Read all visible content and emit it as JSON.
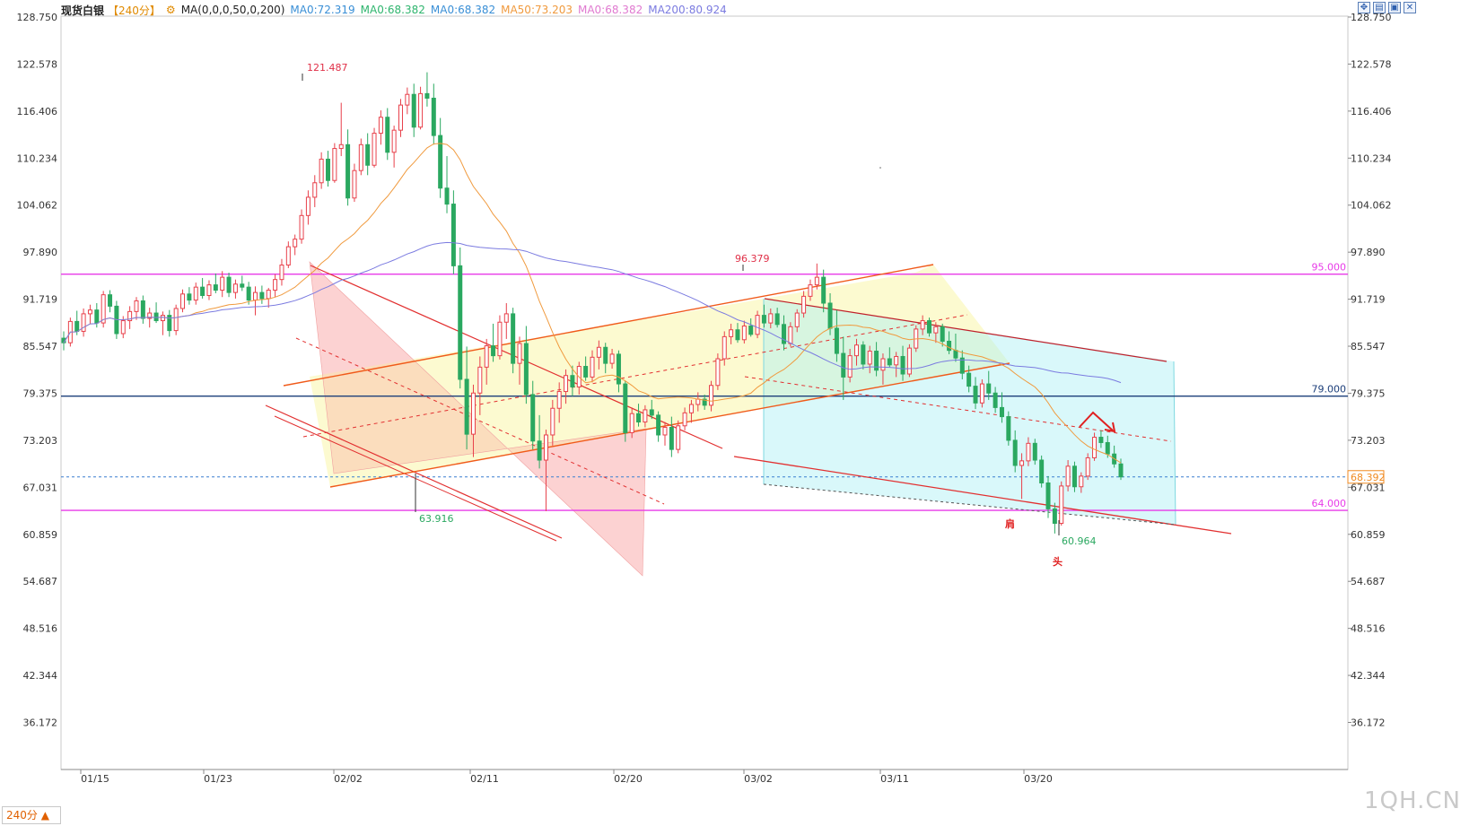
{
  "header": {
    "instrument": "现货白银",
    "period": "【240分】",
    "settings_icon": "gear-icon",
    "ma_params": "MA(0,0,0,50,0,200)",
    "ma_items": [
      {
        "label": "MA0:72.319",
        "color": "#3a8fd6"
      },
      {
        "label": "MA0:68.382",
        "color": "#2fb56e"
      },
      {
        "label": "MA0:68.382",
        "color": "#3a8fd6"
      },
      {
        "label": "MA50:73.203",
        "color": "#f09a3e"
      },
      {
        "label": "MA0:68.382",
        "color": "#e07ad0"
      },
      {
        "label": "MA200:80.924",
        "color": "#7b7be0"
      }
    ]
  },
  "window_controls": [
    "expand-icon",
    "minimize-icon",
    "restore-icon",
    "close-icon"
  ],
  "period_selector": "240分 ▲",
  "watermark": "1QH.CN",
  "chart_data": {
    "type": "candlestick",
    "y_ticks": [
      "128.750",
      "122.578",
      "116.406",
      "110.234",
      "104.062",
      "97.890",
      "91.719",
      "85.547",
      "79.375",
      "73.203",
      "67.031",
      "60.859",
      "54.687",
      "48.516",
      "42.344",
      "36.172"
    ],
    "x_ticks": [
      "01/15",
      "01/23",
      "02/02",
      "02/11",
      "02/20",
      "03/02",
      "03/11",
      "03/20"
    ],
    "ylim": [
      36.172,
      128.75
    ],
    "horizontal_levels": [
      {
        "value": 95.0,
        "label": "95.000",
        "color": "#e83be8"
      },
      {
        "value": 79.0,
        "label": "79.000",
        "color": "#1d3f7a"
      },
      {
        "value": 64.0,
        "label": "64.000",
        "color": "#e83be8"
      }
    ],
    "last_price": {
      "value": 68.392,
      "label": "68.392",
      "color": "#f08a20"
    },
    "annotations": [
      {
        "text": "121.487",
        "color": "#e03048"
      },
      {
        "text": "63.916",
        "color": "#2aa860"
      },
      {
        "text": "96.379",
        "color": "#e03048"
      },
      {
        "text": "60.964",
        "color": "#2aa860"
      },
      {
        "text": "肩",
        "color": "#e02020"
      },
      {
        "text": "头",
        "color": "#e02020"
      }
    ],
    "candles": [
      [
        86.6,
        87.5,
        85.0,
        86.0
      ],
      [
        86.0,
        89.3,
        85.5,
        88.8
      ],
      [
        88.8,
        90.2,
        87.0,
        87.5
      ],
      [
        87.5,
        90.5,
        86.8,
        89.8
      ],
      [
        89.8,
        91.0,
        88.5,
        90.3
      ],
      [
        90.3,
        91.2,
        88.0,
        88.6
      ],
      [
        88.6,
        92.8,
        88.0,
        92.3
      ],
      [
        92.3,
        92.9,
        90.0,
        90.8
      ],
      [
        90.8,
        91.5,
        86.5,
        87.2
      ],
      [
        87.2,
        89.5,
        86.6,
        88.9
      ],
      [
        88.9,
        90.8,
        87.8,
        90.1
      ],
      [
        90.1,
        92.0,
        89.0,
        91.5
      ],
      [
        91.5,
        92.2,
        88.5,
        89.2
      ],
      [
        89.2,
        90.6,
        88.0,
        89.9
      ],
      [
        89.9,
        91.3,
        88.6,
        88.9
      ],
      [
        88.9,
        90.1,
        87.0,
        89.6
      ],
      [
        89.6,
        90.3,
        86.8,
        87.6
      ],
      [
        87.6,
        91.0,
        87.0,
        90.5
      ],
      [
        90.5,
        93.0,
        90.0,
        92.4
      ],
      [
        92.4,
        93.3,
        91.0,
        91.6
      ],
      [
        91.6,
        93.9,
        91.0,
        93.3
      ],
      [
        93.3,
        94.5,
        91.8,
        92.2
      ],
      [
        92.2,
        94.2,
        91.6,
        93.6
      ],
      [
        93.6,
        95.1,
        92.5,
        92.9
      ],
      [
        92.9,
        95.4,
        92.0,
        94.6
      ],
      [
        94.6,
        95.2,
        92.0,
        92.6
      ],
      [
        92.6,
        94.3,
        91.8,
        93.7
      ],
      [
        93.7,
        94.8,
        92.8,
        93.3
      ],
      [
        93.3,
        94.0,
        91.0,
        91.6
      ],
      [
        91.6,
        93.4,
        89.6,
        92.6
      ],
      [
        92.6,
        93.5,
        91.1,
        91.8
      ],
      [
        91.8,
        93.2,
        90.6,
        92.9
      ],
      [
        92.9,
        95.0,
        92.0,
        94.3
      ],
      [
        94.3,
        97.0,
        93.5,
        96.2
      ],
      [
        96.2,
        99.3,
        95.8,
        98.6
      ],
      [
        98.6,
        100.2,
        97.5,
        99.6
      ],
      [
        99.6,
        103.5,
        99.0,
        102.7
      ],
      [
        102.7,
        106.0,
        101.5,
        105.1
      ],
      [
        105.1,
        108.0,
        103.8,
        107.0
      ],
      [
        107.0,
        111.0,
        106.2,
        110.1
      ],
      [
        110.1,
        111.2,
        106.5,
        107.3
      ],
      [
        107.3,
        112.2,
        107.0,
        111.5
      ],
      [
        111.5,
        117.5,
        110.5,
        112.0
      ],
      [
        112.0,
        114.0,
        104.0,
        105.0
      ],
      [
        105.0,
        109.5,
        104.5,
        108.6
      ],
      [
        108.6,
        112.8,
        108.0,
        112.0
      ],
      [
        112.0,
        113.5,
        108.0,
        109.3
      ],
      [
        109.3,
        114.2,
        109.0,
        113.5
      ],
      [
        113.5,
        116.5,
        112.0,
        115.6
      ],
      [
        115.6,
        116.8,
        110.0,
        111.0
      ],
      [
        111.0,
        114.5,
        109.0,
        113.9
      ],
      [
        113.9,
        118.0,
        113.0,
        117.2
      ],
      [
        117.2,
        119.5,
        116.0,
        118.6
      ],
      [
        118.6,
        120.0,
        113.0,
        114.3
      ],
      [
        114.3,
        119.6,
        114.0,
        118.7
      ],
      [
        118.7,
        121.5,
        117.0,
        118.1
      ],
      [
        118.1,
        120.0,
        112.0,
        113.2
      ],
      [
        113.2,
        115.5,
        105.0,
        106.3
      ],
      [
        106.3,
        110.5,
        103.0,
        104.2
      ],
      [
        104.2,
        106.0,
        95.0,
        96.1
      ],
      [
        96.1,
        98.5,
        80.0,
        81.2
      ],
      [
        81.2,
        85.5,
        72.0,
        74.0
      ],
      [
        74.0,
        80.5,
        71.0,
        79.4
      ],
      [
        79.4,
        84.2,
        76.5,
        82.8
      ],
      [
        82.8,
        86.5,
        80.5,
        85.6
      ],
      [
        85.6,
        88.5,
        83.5,
        84.3
      ],
      [
        84.3,
        89.6,
        83.8,
        88.7
      ],
      [
        88.7,
        91.2,
        86.5,
        89.8
      ],
      [
        89.8,
        90.6,
        82.0,
        83.3
      ],
      [
        83.3,
        86.8,
        80.5,
        85.9
      ],
      [
        85.9,
        88.2,
        78.0,
        79.2
      ],
      [
        79.2,
        81.0,
        72.0,
        73.1
      ],
      [
        73.1,
        76.5,
        69.5,
        70.6
      ],
      [
        70.6,
        74.6,
        63.9,
        73.9
      ],
      [
        73.9,
        78.5,
        72.5,
        77.4
      ],
      [
        77.4,
        80.8,
        75.5,
        79.6
      ],
      [
        79.6,
        82.5,
        78.0,
        81.7
      ],
      [
        81.7,
        83.0,
        79.0,
        80.2
      ],
      [
        80.2,
        83.5,
        79.2,
        82.9
      ],
      [
        82.9,
        84.2,
        81.0,
        81.5
      ],
      [
        81.5,
        85.0,
        80.8,
        84.1
      ],
      [
        84.1,
        86.3,
        82.5,
        85.4
      ],
      [
        85.4,
        86.0,
        82.0,
        83.3
      ],
      [
        83.3,
        85.2,
        82.6,
        84.5
      ],
      [
        84.5,
        85.0,
        79.5,
        80.6
      ],
      [
        80.6,
        81.0,
        73.0,
        74.2
      ],
      [
        74.2,
        77.5,
        73.5,
        76.7
      ],
      [
        76.7,
        78.0,
        75.0,
        75.6
      ],
      [
        75.6,
        77.8,
        74.9,
        77.2
      ],
      [
        77.2,
        78.5,
        76.0,
        76.5
      ],
      [
        76.5,
        77.0,
        73.0,
        73.9
      ],
      [
        73.9,
        75.6,
        72.5,
        74.9
      ],
      [
        74.9,
        76.3,
        71.0,
        72.0
      ],
      [
        72.0,
        75.8,
        71.5,
        75.1
      ],
      [
        75.1,
        77.5,
        74.5,
        76.8
      ],
      [
        76.8,
        78.5,
        75.5,
        77.9
      ],
      [
        77.9,
        79.5,
        77.0,
        78.6
      ],
      [
        78.6,
        79.2,
        77.2,
        77.8
      ],
      [
        77.8,
        81.0,
        77.0,
        80.4
      ],
      [
        80.4,
        84.6,
        79.8,
        83.9
      ],
      [
        83.9,
        87.5,
        83.0,
        86.8
      ],
      [
        86.8,
        88.5,
        85.8,
        87.7
      ],
      [
        87.7,
        88.6,
        86.0,
        86.4
      ],
      [
        86.4,
        88.9,
        85.9,
        88.2
      ],
      [
        88.2,
        89.2,
        86.8,
        87.1
      ],
      [
        87.1,
        90.2,
        86.6,
        89.6
      ],
      [
        89.6,
        91.0,
        88.0,
        88.6
      ],
      [
        88.6,
        90.5,
        87.9,
        89.8
      ],
      [
        89.8,
        90.6,
        88.0,
        88.4
      ],
      [
        88.4,
        89.6,
        85.0,
        85.9
      ],
      [
        85.9,
        88.7,
        85.5,
        88.1
      ],
      [
        88.1,
        90.4,
        87.4,
        89.9
      ],
      [
        89.9,
        92.8,
        89.3,
        92.1
      ],
      [
        92.1,
        94.3,
        91.5,
        93.6
      ],
      [
        93.6,
        96.4,
        93.0,
        94.6
      ],
      [
        94.6,
        95.6,
        90.0,
        91.2
      ],
      [
        91.2,
        92.5,
        87.0,
        87.9
      ],
      [
        87.9,
        90.3,
        83.5,
        84.6
      ],
      [
        84.6,
        86.8,
        78.5,
        81.5
      ],
      [
        81.5,
        85.2,
        80.8,
        84.3
      ],
      [
        84.3,
        86.5,
        83.0,
        85.7
      ],
      [
        85.7,
        86.2,
        82.5,
        83.2
      ],
      [
        83.2,
        85.6,
        82.0,
        84.9
      ],
      [
        84.9,
        86.1,
        81.6,
        82.4
      ],
      [
        82.4,
        84.6,
        80.5,
        83.9
      ],
      [
        83.9,
        85.4,
        82.8,
        83.1
      ],
      [
        83.1,
        84.8,
        81.5,
        84.2
      ],
      [
        84.2,
        85.6,
        81.0,
        81.9
      ],
      [
        81.9,
        85.8,
        81.5,
        85.3
      ],
      [
        85.3,
        88.3,
        84.8,
        87.8
      ],
      [
        87.8,
        89.6,
        87.0,
        88.9
      ],
      [
        88.9,
        89.3,
        86.8,
        87.3
      ],
      [
        87.3,
        88.7,
        86.0,
        88.1
      ],
      [
        88.1,
        88.5,
        85.5,
        86.2
      ],
      [
        86.2,
        87.5,
        84.5,
        85.0
      ],
      [
        85.0,
        87.2,
        83.5,
        84.0
      ],
      [
        84.0,
        85.0,
        81.2,
        82.0
      ],
      [
        82.0,
        83.0,
        79.5,
        80.3
      ],
      [
        80.3,
        81.5,
        77.3,
        78.1
      ],
      [
        78.1,
        81.2,
        77.5,
        80.6
      ],
      [
        80.6,
        82.3,
        78.5,
        79.4
      ],
      [
        79.4,
        80.2,
        76.8,
        77.5
      ],
      [
        77.5,
        79.5,
        75.5,
        76.3
      ],
      [
        76.3,
        77.0,
        72.5,
        73.2
      ],
      [
        73.2,
        74.5,
        69.0,
        69.9
      ],
      [
        69.9,
        71.5,
        65.5,
        70.5
      ],
      [
        70.5,
        73.6,
        69.8,
        72.8
      ],
      [
        72.8,
        73.4,
        70.0,
        70.6
      ],
      [
        70.6,
        71.2,
        67.0,
        67.6
      ],
      [
        67.6,
        68.5,
        63.0,
        64.2
      ],
      [
        64.2,
        65.0,
        60.964,
        62.3
      ],
      [
        62.3,
        67.8,
        62.0,
        67.2
      ],
      [
        67.2,
        70.6,
        66.5,
        69.8
      ],
      [
        69.8,
        70.4,
        66.4,
        67.1
      ],
      [
        67.1,
        69.0,
        66.3,
        68.5
      ],
      [
        68.5,
        71.5,
        68.0,
        70.9
      ],
      [
        70.9,
        74.2,
        70.5,
        73.6
      ],
      [
        73.6,
        74.5,
        72.2,
        72.9
      ],
      [
        72.9,
        73.8,
        70.9,
        71.4
      ],
      [
        71.4,
        72.5,
        69.6,
        70.1
      ],
      [
        70.1,
        70.8,
        68.0,
        68.4
      ]
    ]
  }
}
